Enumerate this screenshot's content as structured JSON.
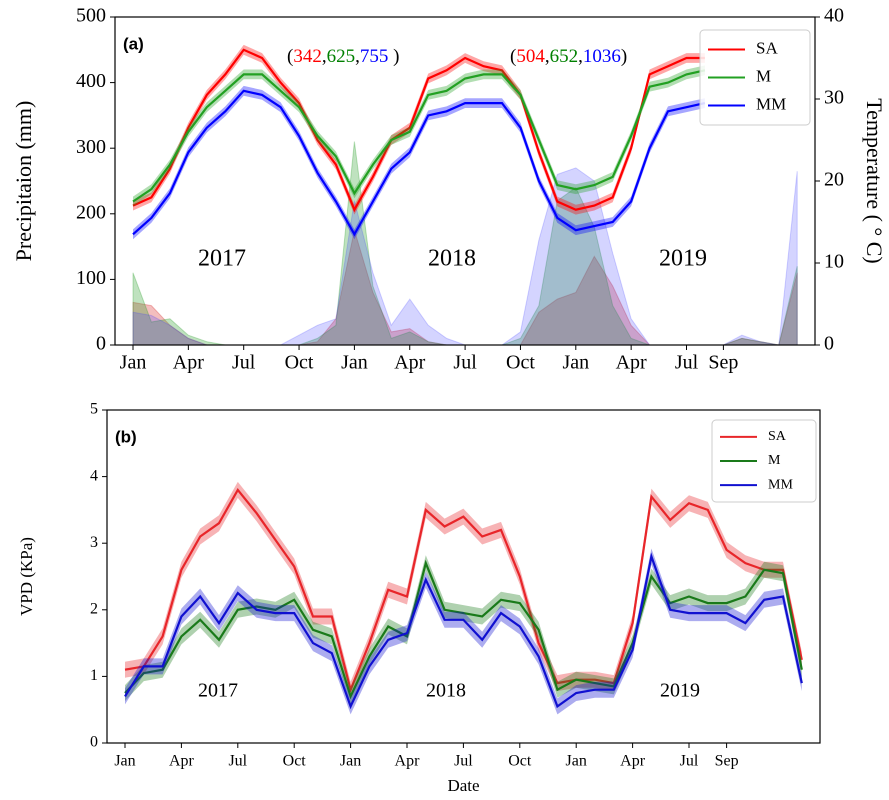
{
  "chart_data": [
    {
      "type": "line",
      "panel_label": "(a)",
      "ylabel": "Precipitaion (mm)",
      "y2label": "Temperature ( ° C)",
      "categories": [
        "Jan",
        null,
        null,
        "Apr",
        null,
        null,
        "Jul",
        null,
        null,
        "Oct",
        null,
        null,
        "Jan",
        null,
        null,
        "Apr",
        null,
        null,
        "Jul",
        null,
        null,
        "Oct",
        null,
        null,
        "Jan",
        null,
        null,
        "Apr",
        null,
        null,
        "Jul",
        null,
        "Sep",
        null,
        null,
        null,
        null
      ],
      "ylim": [
        0,
        500
      ],
      "yticks": [
        0,
        100,
        200,
        300,
        400,
        500
      ],
      "y2lim": [
        0,
        40
      ],
      "y2ticks": [
        0,
        10,
        20,
        30,
        40
      ],
      "legend": "upper right",
      "series": [
        {
          "name": "SA",
          "color": "#ff0000",
          "axis": "y2",
          "band": 0.6,
          "values": [
            17,
            18,
            21.5,
            26.5,
            30.5,
            33,
            36,
            35,
            32,
            29.5,
            25,
            22,
            16.5,
            20.5,
            25,
            26.5,
            32.5,
            33.5,
            35,
            34,
            33.5,
            30.5,
            23.5,
            17.5,
            16.5,
            17,
            18,
            24,
            33,
            34,
            35,
            35,
            null,
            null,
            null,
            null,
            null
          ]
        },
        {
          "name": "M",
          "color": "#22a022",
          "axis": "y2",
          "band": 0.6,
          "values": [
            17.5,
            19,
            22,
            26,
            29,
            31,
            33,
            33,
            31,
            29,
            25.5,
            23,
            18.5,
            22,
            25,
            26,
            30.5,
            31,
            32.5,
            33,
            33,
            30.5,
            25,
            19.5,
            19,
            19.5,
            20.5,
            25.5,
            31.5,
            32,
            33,
            33.5,
            null,
            null,
            null,
            null,
            null
          ]
        },
        {
          "name": "MM",
          "color": "#0000ff",
          "axis": "y2",
          "band": 0.6,
          "values": [
            13.5,
            15.5,
            18.5,
            23.5,
            26.5,
            28.5,
            31,
            30.5,
            29,
            25.5,
            21,
            17.5,
            13.5,
            17.5,
            21.5,
            23.5,
            28,
            28.5,
            29.5,
            29.5,
            29.5,
            26.5,
            20,
            15.5,
            14,
            14.5,
            15,
            17.5,
            24,
            28.5,
            29,
            29.5,
            null,
            null,
            null,
            null,
            null
          ]
        }
      ],
      "areas": [
        {
          "color": "#d62728",
          "opacity": 0.3,
          "values": [
            65,
            60,
            30,
            10,
            0,
            0,
            0,
            0,
            0,
            0,
            5,
            40,
            175,
            80,
            20,
            25,
            5,
            0,
            0,
            0,
            0,
            0,
            50,
            70,
            80,
            135,
            90,
            30,
            0,
            0,
            0,
            0,
            0,
            10,
            5,
            0,
            110
          ]
        },
        {
          "color": "#2ca02c",
          "opacity": 0.3,
          "values": [
            110,
            35,
            40,
            15,
            5,
            0,
            0,
            0,
            0,
            0,
            10,
            30,
            310,
            90,
            10,
            20,
            5,
            0,
            0,
            0,
            0,
            10,
            60,
            220,
            240,
            180,
            60,
            10,
            0,
            0,
            0,
            0,
            0,
            10,
            5,
            0,
            120
          ]
        },
        {
          "color": "#3b3bff",
          "opacity": 0.22,
          "values": [
            50,
            45,
            30,
            10,
            0,
            0,
            0,
            0,
            0,
            15,
            30,
            40,
            220,
            110,
            30,
            70,
            30,
            10,
            0,
            0,
            0,
            20,
            160,
            260,
            270,
            250,
            140,
            40,
            0,
            0,
            0,
            0,
            0,
            15,
            5,
            0,
            265
          ]
        }
      ],
      "year_labels": [
        "2017",
        "2018",
        "2019"
      ],
      "annotations": [
        {
          "parts": [
            {
              "text": "(",
              "color": "#000000"
            },
            {
              "text": "342",
              "color": "#ff0000"
            },
            {
              "text": ",",
              "color": "#000000"
            },
            {
              "text": "625",
              "color": "#008000"
            },
            {
              "text": ",",
              "color": "#000000"
            },
            {
              "text": "755",
              "color": "#0000ff"
            },
            {
              "text": " )",
              "color": "#000000"
            }
          ]
        },
        {
          "parts": [
            {
              "text": "(",
              "color": "#000000"
            },
            {
              "text": "504",
              "color": "#ff0000"
            },
            {
              "text": ",",
              "color": "#000000"
            },
            {
              "text": "652",
              "color": "#008000"
            },
            {
              "text": ",",
              "color": "#000000"
            },
            {
              "text": "1036",
              "color": "#0000ff"
            },
            {
              "text": ")",
              "color": "#000000"
            }
          ]
        }
      ]
    },
    {
      "type": "line",
      "panel_label": "(b)",
      "xlabel": "Date",
      "ylabel": "VPD (KPa)",
      "categories": [
        "Jan",
        null,
        null,
        "Apr",
        null,
        null,
        "Jul",
        null,
        null,
        "Oct",
        null,
        null,
        "Jan",
        null,
        null,
        "Apr",
        null,
        null,
        "Jul",
        null,
        null,
        "Oct",
        null,
        null,
        "Jan",
        null,
        null,
        "Apr",
        null,
        null,
        "Jul",
        null,
        "Sep",
        null,
        null,
        null,
        null
      ],
      "ylim": [
        0,
        5
      ],
      "yticks": [
        0,
        1,
        2,
        3,
        4,
        5
      ],
      "legend": "upper right",
      "series": [
        {
          "name": "SA",
          "color": "#e8262a",
          "band": 0.12,
          "values": [
            1.1,
            1.15,
            1.6,
            2.6,
            3.1,
            3.3,
            3.8,
            3.45,
            3.05,
            2.65,
            1.9,
            1.9,
            0.8,
            1.5,
            2.3,
            2.2,
            3.5,
            3.25,
            3.4,
            3.1,
            3.2,
            2.5,
            1.5,
            0.9,
            0.95,
            0.95,
            0.9,
            1.8,
            3.7,
            3.35,
            3.6,
            3.5,
            2.9,
            2.7,
            2.6,
            2.6,
            1.25
          ]
        },
        {
          "name": "M",
          "color": "#1a7a1a",
          "band": 0.12,
          "values": [
            0.75,
            1.05,
            1.1,
            1.6,
            1.85,
            1.55,
            2.0,
            2.05,
            2.0,
            2.15,
            1.7,
            1.6,
            0.7,
            1.3,
            1.75,
            1.6,
            2.7,
            2.0,
            1.95,
            1.9,
            2.15,
            2.1,
            1.7,
            0.8,
            0.95,
            0.9,
            0.85,
            1.5,
            2.5,
            2.1,
            2.2,
            2.1,
            2.1,
            2.2,
            2.6,
            2.55,
            1.1
          ]
        },
        {
          "name": "MM",
          "color": "#1010d0",
          "band": 0.12,
          "values": [
            0.7,
            1.15,
            1.15,
            1.9,
            2.2,
            1.8,
            2.25,
            2.0,
            1.95,
            1.95,
            1.5,
            1.35,
            0.55,
            1.15,
            1.55,
            1.65,
            2.45,
            1.85,
            1.85,
            1.55,
            1.95,
            1.75,
            1.3,
            0.55,
            0.75,
            0.8,
            0.8,
            1.4,
            2.8,
            2.0,
            1.95,
            1.95,
            1.95,
            1.8,
            2.15,
            2.2,
            0.9
          ]
        }
      ],
      "year_labels": [
        "2017",
        "2018",
        "2019"
      ]
    }
  ]
}
